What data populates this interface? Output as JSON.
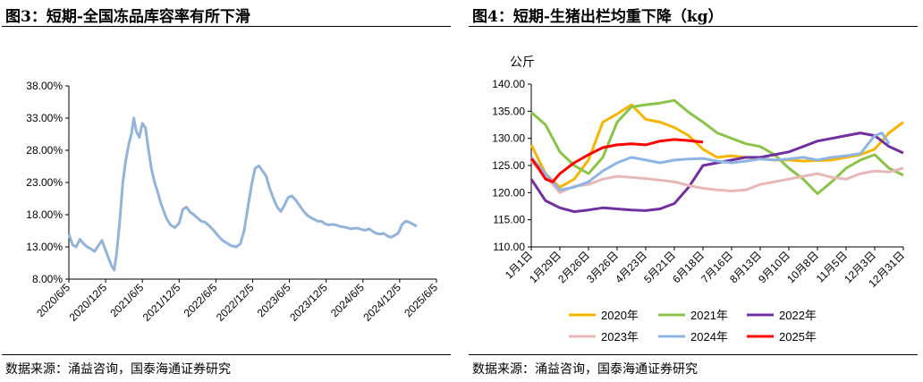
{
  "chart_data": [
    {
      "type": "line",
      "title": "图3：短期-全国冻品库容率有所下滑",
      "source": "数据来源：涌益咨询，国泰海通证券研究",
      "xlabel": "",
      "ylabel": "",
      "ylim": [
        8,
        38
      ],
      "y_ticks": [
        "38.00%",
        "33.00%",
        "28.00%",
        "23.00%",
        "18.00%",
        "13.00%",
        "8.00%"
      ],
      "x_ticks": [
        "2020/6/5",
        "2020/12/5",
        "2021/6/5",
        "2021/12/5",
        "2022/6/5",
        "2022/12/5",
        "2023/6/5",
        "2023/12/5",
        "2024/6/5",
        "2024/12/5",
        "2025/6/5"
      ],
      "x_range_months": [
        0,
        60
      ],
      "series": [
        {
          "name": "库容率",
          "color": "#93b3d7",
          "points": [
            [
              0,
              15.0
            ],
            [
              0.6,
              13.3
            ],
            [
              1.2,
              13.0
            ],
            [
              1.8,
              14.2
            ],
            [
              2.4,
              13.5
            ],
            [
              3.0,
              13.0
            ],
            [
              3.6,
              12.7
            ],
            [
              4.2,
              12.3
            ],
            [
              4.8,
              13.2
            ],
            [
              5.4,
              14.0
            ],
            [
              6.0,
              12.5
            ],
            [
              6.5,
              11.2
            ],
            [
              7.0,
              10.0
            ],
            [
              7.4,
              9.4
            ],
            [
              7.8,
              12.0
            ],
            [
              8.3,
              17.0
            ],
            [
              8.8,
              23.0
            ],
            [
              9.3,
              26.5
            ],
            [
              9.8,
              29.0
            ],
            [
              10.2,
              30.5
            ],
            [
              10.6,
              33.0
            ],
            [
              11.0,
              31.0
            ],
            [
              11.5,
              30.0
            ],
            [
              12.0,
              32.2
            ],
            [
              12.5,
              31.5
            ],
            [
              13.0,
              28.0
            ],
            [
              13.5,
              25.0
            ],
            [
              14.0,
              23.0
            ],
            [
              14.5,
              21.5
            ],
            [
              15.0,
              19.8
            ],
            [
              15.5,
              18.5
            ],
            [
              16.0,
              17.3
            ],
            [
              16.6,
              16.4
            ],
            [
              17.3,
              16.0
            ],
            [
              18.0,
              16.7
            ],
            [
              18.6,
              18.8
            ],
            [
              19.2,
              19.2
            ],
            [
              19.8,
              18.4
            ],
            [
              20.4,
              18.0
            ],
            [
              21.0,
              17.5
            ],
            [
              21.6,
              17.0
            ],
            [
              22.3,
              16.8
            ],
            [
              23.0,
              16.2
            ],
            [
              23.7,
              15.5
            ],
            [
              24.4,
              14.7
            ],
            [
              25.1,
              14.0
            ],
            [
              25.8,
              13.6
            ],
            [
              26.5,
              13.2
            ],
            [
              27.3,
              13.0
            ],
            [
              28.0,
              13.5
            ],
            [
              28.6,
              15.5
            ],
            [
              29.2,
              19.0
            ],
            [
              29.8,
              22.5
            ],
            [
              30.4,
              25.2
            ],
            [
              31.0,
              25.6
            ],
            [
              31.6,
              24.8
            ],
            [
              32.2,
              24.0
            ],
            [
              32.8,
              22.0
            ],
            [
              33.4,
              20.5
            ],
            [
              34.0,
              19.2
            ],
            [
              34.6,
              18.5
            ],
            [
              35.2,
              19.5
            ],
            [
              35.8,
              20.7
            ],
            [
              36.4,
              20.9
            ],
            [
              37.0,
              20.3
            ],
            [
              37.6,
              19.5
            ],
            [
              38.2,
              18.7
            ],
            [
              38.8,
              18.0
            ],
            [
              39.4,
              17.6
            ],
            [
              40.0,
              17.3
            ],
            [
              40.6,
              17.0
            ],
            [
              41.2,
              17.0
            ],
            [
              41.8,
              16.6
            ],
            [
              42.4,
              16.4
            ],
            [
              43.0,
              16.5
            ],
            [
              43.6,
              16.4
            ],
            [
              44.2,
              16.2
            ],
            [
              44.8,
              16.1
            ],
            [
              45.4,
              16.0
            ],
            [
              46.0,
              15.8
            ],
            [
              46.6,
              15.9
            ],
            [
              47.2,
              15.9
            ],
            [
              47.8,
              15.7
            ],
            [
              48.4,
              15.6
            ],
            [
              49.0,
              15.8
            ],
            [
              49.6,
              15.4
            ],
            [
              50.2,
              15.1
            ],
            [
              50.8,
              15.0
            ],
            [
              51.4,
              15.1
            ],
            [
              52.0,
              14.7
            ],
            [
              52.6,
              14.5
            ],
            [
              53.2,
              14.8
            ],
            [
              53.8,
              15.2
            ],
            [
              54.4,
              16.5
            ],
            [
              55.0,
              17.0
            ],
            [
              55.6,
              16.8
            ],
            [
              56.2,
              16.5
            ],
            [
              56.8,
              16.2
            ]
          ]
        }
      ]
    },
    {
      "type": "line",
      "title": "图4：短期-生猪出栏均重下降（kg）",
      "source": "数据来源：涌益咨询，国泰海通证券研究",
      "ylabel": "公斤",
      "xlabel": "",
      "ylim": [
        110,
        140
      ],
      "y_ticks": [
        "140.00",
        "135.00",
        "130.00",
        "125.00",
        "120.00",
        "115.00",
        "110.00"
      ],
      "x_ticks": [
        "1月1日",
        "1月29日",
        "2月26日",
        "3月26日",
        "4月23日",
        "5月21日",
        "6月18日",
        "7月16日",
        "8月13日",
        "9月10日",
        "10月8日",
        "11月5日",
        "12月3日",
        "12月31日"
      ],
      "x_range_days": [
        0,
        364
      ],
      "legend": "bottom",
      "series": [
        {
          "name": "2020年",
          "color": "#f7b500",
          "points": [
            [
              0,
              128.8
            ],
            [
              14,
              123.5
            ],
            [
              28,
              121.0
            ],
            [
              42,
              122.5
            ],
            [
              56,
              126.0
            ],
            [
              70,
              133.0
            ],
            [
              84,
              134.5
            ],
            [
              98,
              136.2
            ],
            [
              112,
              133.5
            ],
            [
              126,
              133.0
            ],
            [
              140,
              132.0
            ],
            [
              154,
              130.5
            ],
            [
              168,
              128.0
            ],
            [
              182,
              126.5
            ],
            [
              196,
              126.8
            ],
            [
              210,
              126.5
            ],
            [
              224,
              126.3
            ],
            [
              238,
              126.0
            ],
            [
              252,
              126.0
            ],
            [
              266,
              125.8
            ],
            [
              280,
              125.9
            ],
            [
              294,
              126.0
            ],
            [
              308,
              126.5
            ],
            [
              322,
              127.0
            ],
            [
              336,
              128.0
            ],
            [
              350,
              131.0
            ],
            [
              364,
              133.0
            ]
          ]
        },
        {
          "name": "2021年",
          "color": "#8bc34a",
          "points": [
            [
              0,
              134.8
            ],
            [
              14,
              132.5
            ],
            [
              28,
              127.5
            ],
            [
              42,
              125.0
            ],
            [
              56,
              123.5
            ],
            [
              70,
              126.5
            ],
            [
              84,
              133.0
            ],
            [
              98,
              135.8
            ],
            [
              112,
              136.2
            ],
            [
              126,
              136.5
            ],
            [
              140,
              137.0
            ],
            [
              154,
              134.8
            ],
            [
              168,
              133.0
            ],
            [
              182,
              131.0
            ],
            [
              196,
              130.0
            ],
            [
              210,
              129.0
            ],
            [
              224,
              128.5
            ],
            [
              238,
              127.0
            ],
            [
              252,
              124.5
            ],
            [
              266,
              122.5
            ],
            [
              280,
              119.8
            ],
            [
              294,
              122.0
            ],
            [
              308,
              124.5
            ],
            [
              322,
              126.0
            ],
            [
              336,
              127.0
            ],
            [
              350,
              124.5
            ],
            [
              364,
              123.2
            ]
          ]
        },
        {
          "name": "2022年",
          "color": "#7030a0",
          "points": [
            [
              0,
              122.5
            ],
            [
              14,
              118.5
            ],
            [
              28,
              117.2
            ],
            [
              42,
              116.5
            ],
            [
              56,
              116.8
            ],
            [
              70,
              117.2
            ],
            [
              84,
              117.0
            ],
            [
              98,
              116.8
            ],
            [
              112,
              116.7
            ],
            [
              126,
              117.0
            ],
            [
              140,
              118.0
            ],
            [
              154,
              121.0
            ],
            [
              168,
              125.0
            ],
            [
              182,
              125.5
            ],
            [
              196,
              126.0
            ],
            [
              210,
              126.5
            ],
            [
              224,
              126.5
            ],
            [
              238,
              127.0
            ],
            [
              252,
              127.5
            ],
            [
              266,
              128.5
            ],
            [
              280,
              129.5
            ],
            [
              294,
              130.0
            ],
            [
              308,
              130.5
            ],
            [
              322,
              131.0
            ],
            [
              336,
              130.5
            ],
            [
              350,
              128.5
            ],
            [
              364,
              127.3
            ]
          ]
        },
        {
          "name": "2023年",
          "color": "#e6b8b7",
          "points": [
            [
              0,
              125.8
            ],
            [
              14,
              123.0
            ],
            [
              28,
              120.0
            ],
            [
              42,
              121.2
            ],
            [
              56,
              121.5
            ],
            [
              70,
              122.5
            ],
            [
              84,
              123.0
            ],
            [
              98,
              122.8
            ],
            [
              112,
              122.6
            ],
            [
              126,
              122.3
            ],
            [
              140,
              122.0
            ],
            [
              154,
              121.3
            ],
            [
              168,
              120.8
            ],
            [
              182,
              120.5
            ],
            [
              196,
              120.3
            ],
            [
              210,
              120.5
            ],
            [
              224,
              121.5
            ],
            [
              238,
              122.0
            ],
            [
              252,
              122.5
            ],
            [
              266,
              123.0
            ],
            [
              280,
              123.5
            ],
            [
              294,
              122.8
            ],
            [
              308,
              122.5
            ],
            [
              322,
              123.5
            ],
            [
              336,
              124.0
            ],
            [
              350,
              123.8
            ],
            [
              364,
              124.5
            ]
          ]
        },
        {
          "name": "2024年",
          "color": "#8eb4e3",
          "points": [
            [
              0,
              126.5
            ],
            [
              14,
              123.5
            ],
            [
              28,
              120.5
            ],
            [
              42,
              121.0
            ],
            [
              56,
              122.0
            ],
            [
              70,
              124.0
            ],
            [
              84,
              125.5
            ],
            [
              98,
              126.5
            ],
            [
              112,
              126.0
            ],
            [
              126,
              125.5
            ],
            [
              140,
              126.0
            ],
            [
              154,
              126.2
            ],
            [
              168,
              126.3
            ],
            [
              182,
              125.8
            ],
            [
              196,
              125.5
            ],
            [
              210,
              125.8
            ],
            [
              224,
              126.2
            ],
            [
              238,
              126.0
            ],
            [
              252,
              126.2
            ],
            [
              266,
              126.5
            ],
            [
              280,
              126.0
            ],
            [
              294,
              126.5
            ],
            [
              308,
              126.8
            ],
            [
              322,
              127.2
            ],
            [
              336,
              130.5
            ],
            [
              343,
              131.0
            ],
            [
              350,
              129.0
            ]
          ]
        },
        {
          "name": "2025年",
          "color": "#ff0000",
          "points": [
            [
              0,
              126.3
            ],
            [
              7,
              124.5
            ],
            [
              14,
              122.5
            ],
            [
              21,
              122.0
            ],
            [
              28,
              123.5
            ],
            [
              42,
              125.5
            ],
            [
              56,
              127.0
            ],
            [
              70,
              128.3
            ],
            [
              84,
              128.8
            ],
            [
              98,
              129.0
            ],
            [
              112,
              128.8
            ],
            [
              126,
              129.5
            ],
            [
              140,
              129.8
            ],
            [
              154,
              129.6
            ],
            [
              168,
              129.3
            ]
          ]
        }
      ]
    }
  ]
}
